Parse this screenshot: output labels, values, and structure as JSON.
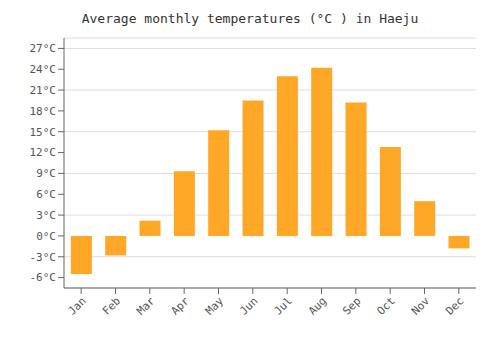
{
  "chart_data": {
    "type": "bar",
    "title": "Average monthly temperatures (°C ) in Haeju",
    "categories": [
      "Jan",
      "Feb",
      "Mar",
      "Apr",
      "May",
      "Jun",
      "Jul",
      "Aug",
      "Sep",
      "Oct",
      "Nov",
      "Dec"
    ],
    "values": [
      -5.5,
      -2.8,
      2.2,
      9.3,
      15.2,
      19.5,
      23.0,
      24.2,
      19.2,
      12.8,
      5.0,
      -1.8
    ],
    "color": "#FFA726",
    "ylim": [
      -7.5,
      28.5
    ],
    "yticks": [
      {
        "value": -6,
        "label": "-6°C"
      },
      {
        "value": -3,
        "label": "-3°C"
      },
      {
        "value": 0,
        "label": "0°C"
      },
      {
        "value": 3,
        "label": "3°C"
      },
      {
        "value": 6,
        "label": "6°C"
      },
      {
        "value": 9,
        "label": "9°C"
      },
      {
        "value": 12,
        "label": "12°C"
      },
      {
        "value": 15,
        "label": "15°C"
      },
      {
        "value": 18,
        "label": "18°C"
      },
      {
        "value": 21,
        "label": "21°C"
      },
      {
        "value": 24,
        "label": "24°C"
      },
      {
        "value": 27,
        "label": "27°C"
      }
    ],
    "grid": true
  }
}
